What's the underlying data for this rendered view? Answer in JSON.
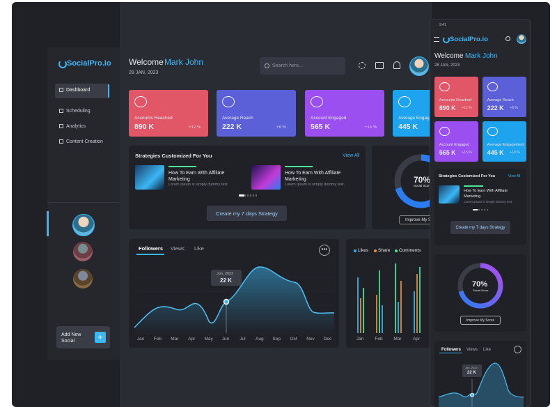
{
  "status_time": "9:41",
  "brand": "SocialPro.io",
  "header": {
    "greeting": "Welcome",
    "user_name": "Mark John",
    "date": "28 JAN, 2023",
    "search_placeholder": "Search here..."
  },
  "nav": {
    "items": [
      "Dashboard",
      "Scheduling",
      "Analytics",
      "Content Creation"
    ],
    "add_button": "Add New Social"
  },
  "stats": [
    {
      "label": "Accounts Reached",
      "value": "890 K",
      "change": "+12 %"
    },
    {
      "label": "Average Reach",
      "value": "222 K",
      "change": "+8 %"
    },
    {
      "label": "Account Engaged",
      "value": "565 K",
      "change": "+15 %"
    },
    {
      "label": "Average Engagement",
      "value": "445 K",
      "change": "+10 %"
    }
  ],
  "strategies": {
    "title": "Strategies Customized For You",
    "view_all": "View All",
    "items": [
      {
        "title": "How To Earn With Affiliate Marketing",
        "desc": "Lorem Ipsum is simply dummy text."
      },
      {
        "title": "How To Earn With Affiliate Marketing",
        "desc": "Lorem Ipsum is simply dummy text."
      }
    ],
    "button": "Create my 7 days Strategy"
  },
  "score": {
    "value": "70%",
    "label": "Social Score",
    "button": "Improve My Score"
  },
  "followers": {
    "tabs": [
      "Followers",
      "Views",
      "Like"
    ],
    "months": [
      "Jan",
      "Feb",
      "Mar",
      "Apr",
      "May",
      "Jun",
      "Jul",
      "Aug",
      "Sep",
      "Oct",
      "Nov",
      "Dec"
    ],
    "tooltip": {
      "date": "Jun, 2022",
      "value": "22 K"
    }
  },
  "engagement": {
    "legend": [
      "Likes",
      "Share",
      "Comments"
    ],
    "months": [
      "Jan",
      "Feb",
      "Mar",
      "Apr"
    ]
  }
}
